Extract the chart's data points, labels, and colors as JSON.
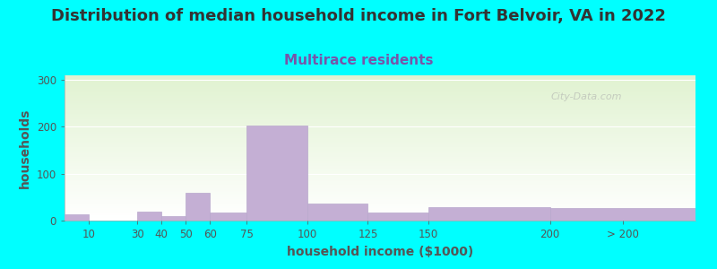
{
  "title": "Distribution of median household income in Fort Belvoir, VA in 2022",
  "subtitle": "Multirace residents",
  "xlabel": "household income ($1000)",
  "ylabel": "households",
  "background_outer": "#00FFFF",
  "bar_color": "#c4afd4",
  "bar_edge_color": "#b8a8cc",
  "categories": [
    "10",
    "30",
    "40",
    "50",
    "60",
    "75",
    "100",
    "125",
    "150",
    "200",
    "> 200"
  ],
  "values": [
    13,
    0,
    20,
    10,
    60,
    17,
    203,
    37,
    17,
    28,
    27
  ],
  "left_edges": [
    0,
    10,
    30,
    40,
    50,
    60,
    75,
    100,
    125,
    150,
    200
  ],
  "widths": [
    10,
    20,
    10,
    10,
    10,
    15,
    25,
    25,
    25,
    50,
    60
  ],
  "tick_positions": [
    10,
    30,
    40,
    50,
    60,
    75,
    100,
    125,
    150,
    200,
    230
  ],
  "tick_labels": [
    "10",
    "30",
    "40",
    "50",
    "60",
    "75",
    "100",
    "125",
    "150",
    "200",
    "> 200"
  ],
  "yticks": [
    0,
    100,
    200,
    300
  ],
  "ylim": [
    0,
    310
  ],
  "xlim": [
    0,
    260
  ],
  "title_fontsize": 13,
  "subtitle_fontsize": 11,
  "axis_label_fontsize": 10,
  "tick_fontsize": 8.5,
  "watermark": "City-Data.com",
  "title_color": "#333333",
  "subtitle_color": "#7755aa",
  "label_color": "#555555"
}
